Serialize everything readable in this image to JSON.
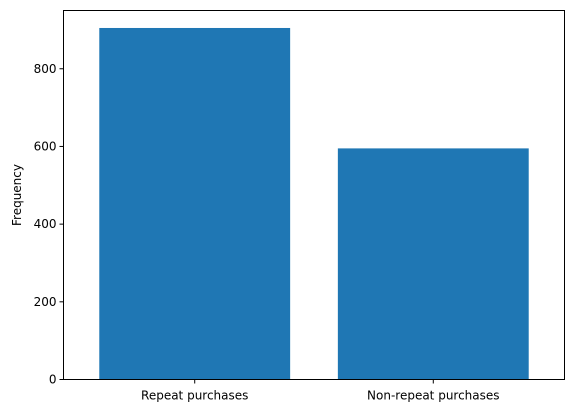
{
  "chart_data": {
    "type": "bar",
    "title": "",
    "xlabel": "",
    "ylabel": "Frequency",
    "categories": [
      "Repeat purchases",
      "Non-repeat purchases"
    ],
    "values": [
      905,
      595
    ],
    "ylim": [
      0,
      950
    ],
    "yticks": [
      0,
      200,
      400,
      600,
      800
    ],
    "grid": false,
    "bar_color": "#1f77b4",
    "axis_color": "#000000"
  }
}
